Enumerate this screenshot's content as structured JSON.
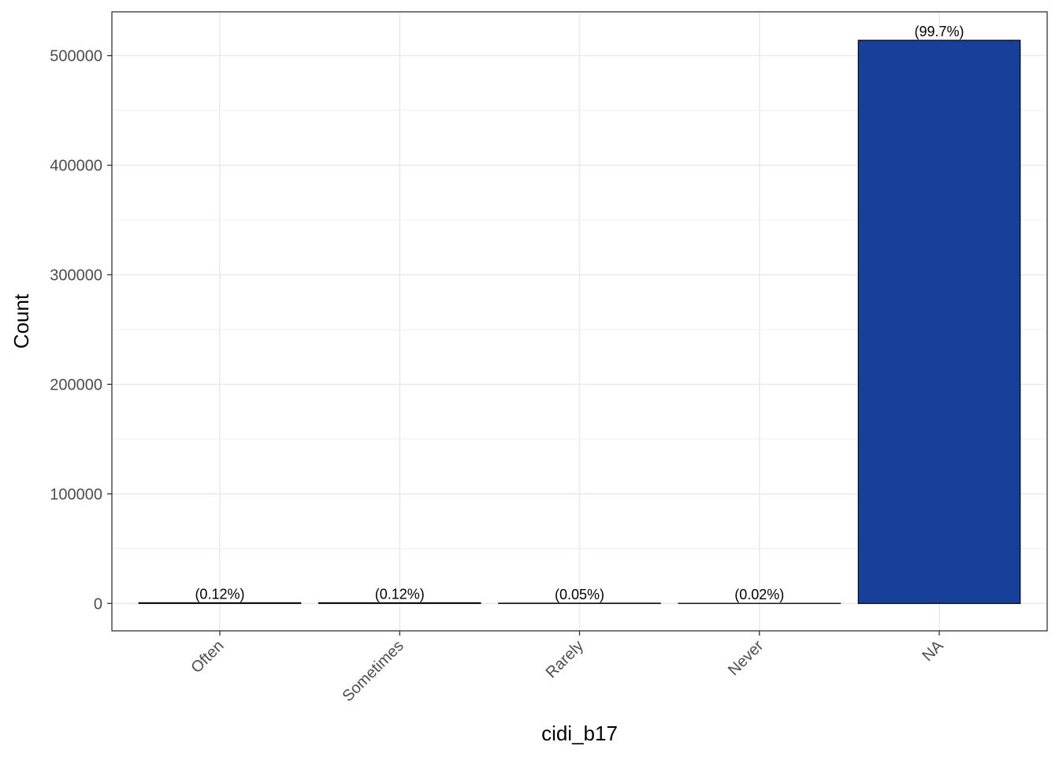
{
  "chart_data": {
    "type": "bar",
    "categories": [
      "Often",
      "Sometimes",
      "Rarely",
      "Never",
      "NA"
    ],
    "values": [
      620,
      620,
      260,
      100,
      514000
    ],
    "data_labels": [
      "(0.12%)",
      "(0.12%)",
      "(0.05%)",
      "(0.02%)",
      "(99.7%)"
    ],
    "title": "",
    "xlabel": "cidi_b17",
    "ylabel": "Count",
    "ylim": [
      -25000,
      540000
    ],
    "yticks": [
      0,
      100000,
      200000,
      300000,
      400000,
      500000
    ],
    "ytick_labels": [
      "0",
      "100000",
      "200000",
      "300000",
      "400000",
      "500000"
    ],
    "grid": true,
    "legend": "none",
    "bar_fill": "#17409A",
    "bar_outline": "#000000",
    "grid_color": "#EBEBEB",
    "panel_border": "#333333"
  }
}
